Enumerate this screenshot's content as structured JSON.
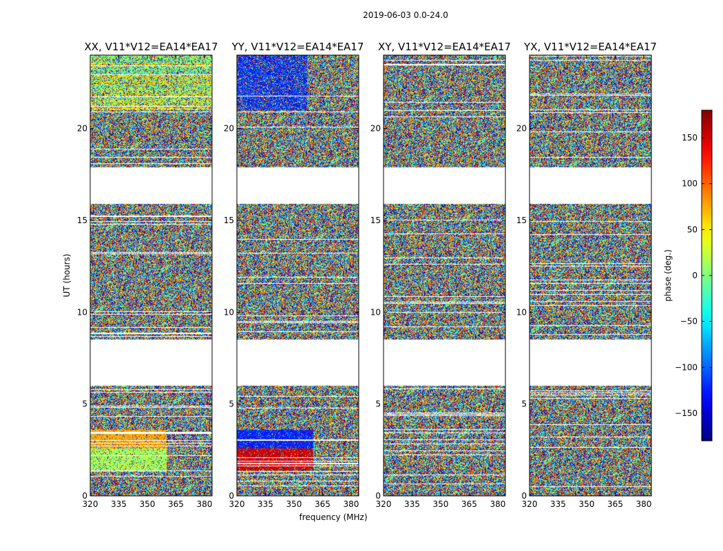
{
  "figure": {
    "suptitle": "2019-06-03 0.0-24.0",
    "xlabel": "frequency (MHz)",
    "ylabel": "UT (hours)",
    "colorbar_label": "phase (deg.)"
  },
  "chart_data": [
    {
      "type": "heatmap",
      "title": "XX, V11*V12=EA14*EA17",
      "x_ticks": [
        "320",
        "335",
        "350",
        "365",
        "380"
      ],
      "y_ticks": [
        "0",
        "5",
        "10",
        "15",
        "20"
      ],
      "x_range": [
        320,
        384
      ],
      "y_range": [
        0,
        24
      ],
      "style": "xx"
    },
    {
      "type": "heatmap",
      "title": "YY, V11*V12=EA14*EA17",
      "x_ticks": [
        "320",
        "335",
        "350",
        "365",
        "380"
      ],
      "y_ticks": [
        "0",
        "5",
        "10",
        "15",
        "20"
      ],
      "x_range": [
        320,
        384
      ],
      "y_range": [
        0,
        24
      ],
      "style": "yy"
    },
    {
      "type": "heatmap",
      "title": "XY, V11*V12=EA14*EA17",
      "x_ticks": [
        "320",
        "335",
        "350",
        "365",
        "380"
      ],
      "y_ticks": [
        "0",
        "5",
        "10",
        "15",
        "20"
      ],
      "x_range": [
        320,
        384
      ],
      "y_range": [
        0,
        24
      ],
      "style": "noise"
    },
    {
      "type": "heatmap",
      "title": "YX, V11*V12=EA14*EA17",
      "x_ticks": [
        "320",
        "335",
        "350",
        "365",
        "380"
      ],
      "y_ticks": [
        "0",
        "5",
        "10",
        "15",
        "20"
      ],
      "x_range": [
        320,
        384
      ],
      "y_range": [
        0,
        24
      ],
      "style": "noise"
    }
  ],
  "colorbar": {
    "ticks": [
      "150",
      "100",
      "50",
      "0",
      "−50",
      "−100",
      "−150"
    ],
    "range": [
      -180,
      180
    ],
    "colormap": "jet"
  },
  "data_gaps_ut_hours": [
    [
      6.0,
      8.5
    ],
    [
      15.9,
      17.9
    ]
  ]
}
